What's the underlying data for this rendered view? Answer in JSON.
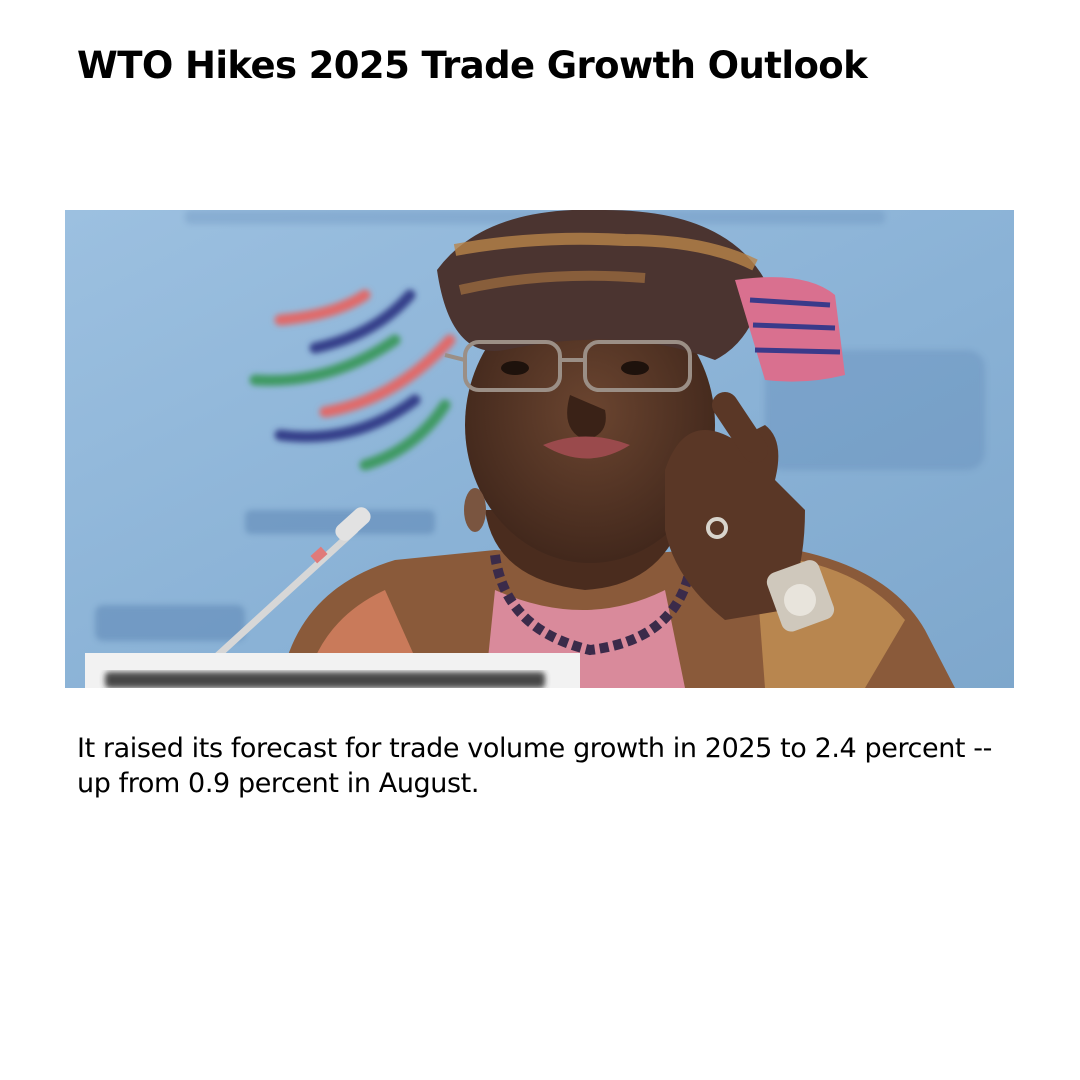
{
  "article": {
    "headline": "WTO Hikes 2025 Trade Growth Outlook",
    "caption": "It raised its forecast for trade volume growth in 2025 to 2.4 percent -- up from 0.9 percent in August."
  },
  "photo": {
    "subject": "speaker-at-podium",
    "backdrop_colors": {
      "background": "#8fb6d9",
      "logo_red": "#e06a6a",
      "logo_navy": "#35408a",
      "logo_green": "#3f9a63"
    }
  }
}
